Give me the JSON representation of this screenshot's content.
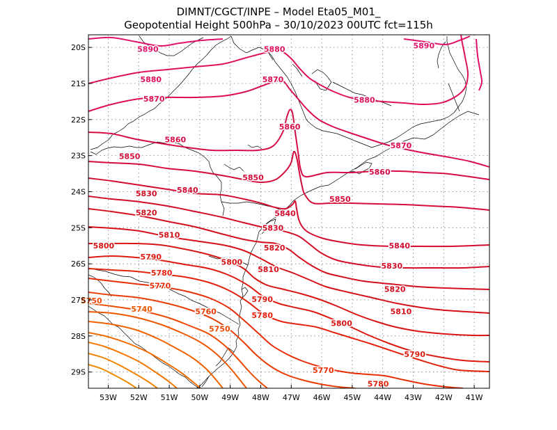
{
  "header": {
    "line1": "DIMNT/CGCT/INPE –  Model Eta05_M01_",
    "line2": "Geopotential Height 500hPa –  30/10/2023 00UTC fct=115h"
  },
  "map": {
    "lon_range": [
      -53.65,
      -40.5
    ],
    "lat_range": [
      -29.45,
      -19.65
    ],
    "lon_ticks": [
      {
        "value": -53,
        "label": "53W"
      },
      {
        "value": -52,
        "label": "52W"
      },
      {
        "value": -51,
        "label": "51W"
      },
      {
        "value": -50,
        "label": "50W"
      },
      {
        "value": -49,
        "label": "49W"
      },
      {
        "value": -48,
        "label": "48W"
      },
      {
        "value": -47,
        "label": "47W"
      },
      {
        "value": -46,
        "label": "46W"
      },
      {
        "value": -45,
        "label": "45W"
      },
      {
        "value": -44,
        "label": "44W"
      },
      {
        "value": -43,
        "label": "43W"
      },
      {
        "value": -42,
        "label": "42W"
      },
      {
        "value": -41,
        "label": "41W"
      }
    ],
    "lat_ticks": [
      {
        "value": -20,
        "label": "20S"
      },
      {
        "value": -21,
        "label": "21S"
      },
      {
        "value": -22,
        "label": "22S"
      },
      {
        "value": -23,
        "label": "23S"
      },
      {
        "value": -24,
        "label": "24S"
      },
      {
        "value": -25,
        "label": "25S"
      },
      {
        "value": -26,
        "label": "26S"
      },
      {
        "value": -27,
        "label": "27S"
      },
      {
        "value": -28,
        "label": "28S"
      },
      {
        "value": -29,
        "label": "29S"
      }
    ],
    "grid": "dotted",
    "contour_levels": [
      5690,
      5700,
      5710,
      5720,
      5730,
      5740,
      5750,
      5760,
      5770,
      5780,
      5790,
      5800,
      5810,
      5820,
      5830,
      5840,
      5850,
      5860,
      5870,
      5880,
      5890
    ],
    "contour_colors": {
      "5690": "#f08a00",
      "5700": "#f28200",
      "5710": "#f27800",
      "5720": "#f26e00",
      "5730": "#f06200",
      "5740": "#ee5600",
      "5750": "#eb4a00",
      "5760": "#e83c04",
      "5770": "#e52e08",
      "5780": "#e2220c",
      "5790": "#dd1a10",
      "5800": "#d81414",
      "5810": "#d51018",
      "5820": "#d30e1e",
      "5830": "#d20c26",
      "5840": "#d20c30",
      "5850": "#d30c3a",
      "5860": "#d50c46",
      "5870": "#da0e52",
      "5880": "#de105e",
      "5890": "#e0126a"
    },
    "contour_labels": [
      {
        "text": "5890",
        "lon": -51.7,
        "lat": -20.05
      },
      {
        "text": "5890",
        "lon": -42.65,
        "lat": -19.95
      },
      {
        "text": "5880",
        "lon": -47.55,
        "lat": -20.05
      },
      {
        "text": "5880",
        "lon": -51.6,
        "lat": -20.88
      },
      {
        "text": "5880",
        "lon": -44.6,
        "lat": -21.45
      },
      {
        "text": "5870",
        "lon": -47.6,
        "lat": -20.88
      },
      {
        "text": "5870",
        "lon": -51.5,
        "lat": -21.42
      },
      {
        "text": "5870",
        "lon": -43.4,
        "lat": -22.72
      },
      {
        "text": "5860",
        "lon": -47.05,
        "lat": -22.2
      },
      {
        "text": "5860",
        "lon": -50.8,
        "lat": -22.55
      },
      {
        "text": "5860",
        "lon": -44.1,
        "lat": -23.45
      },
      {
        "text": "5850",
        "lon": -52.3,
        "lat": -23.02
      },
      {
        "text": "5850",
        "lon": -48.25,
        "lat": -23.6
      },
      {
        "text": "5850",
        "lon": -45.4,
        "lat": -24.2
      },
      {
        "text": "5840",
        "lon": -50.4,
        "lat": -23.95
      },
      {
        "text": "5840",
        "lon": -47.2,
        "lat": -24.6
      },
      {
        "text": "5840",
        "lon": -43.45,
        "lat": -25.5
      },
      {
        "text": "5830",
        "lon": -51.75,
        "lat": -24.05
      },
      {
        "text": "5830",
        "lon": -47.6,
        "lat": -25.0
      },
      {
        "text": "5830",
        "lon": -43.7,
        "lat": -26.05
      },
      {
        "text": "5820",
        "lon": -51.75,
        "lat": -24.58
      },
      {
        "text": "5820",
        "lon": -47.55,
        "lat": -25.55
      },
      {
        "text": "5820",
        "lon": -43.6,
        "lat": -26.7
      },
      {
        "text": "5810",
        "lon": -51.0,
        "lat": -25.2
      },
      {
        "text": "5810",
        "lon": -47.75,
        "lat": -26.15
      },
      {
        "text": "5810",
        "lon": -43.4,
        "lat": -27.32
      },
      {
        "text": "5800",
        "lon": -53.15,
        "lat": -25.5
      },
      {
        "text": "5800",
        "lon": -48.95,
        "lat": -25.95
      },
      {
        "text": "5800",
        "lon": -45.35,
        "lat": -27.65
      },
      {
        "text": "5790",
        "lon": -51.6,
        "lat": -25.8
      },
      {
        "text": "5790",
        "lon": -47.95,
        "lat": -26.98
      },
      {
        "text": "5790",
        "lon": -42.95,
        "lat": -28.5
      },
      {
        "text": "5780",
        "lon": -51.25,
        "lat": -26.25
      },
      {
        "text": "5780",
        "lon": -47.95,
        "lat": -27.42
      },
      {
        "text": "5780",
        "lon": -44.15,
        "lat": -29.32
      },
      {
        "text": "5770",
        "lon": -51.3,
        "lat": -26.6
      },
      {
        "text": "5770",
        "lon": -45.95,
        "lat": -28.95
      },
      {
        "text": "5760",
        "lon": -49.8,
        "lat": -27.32
      },
      {
        "text": "5750",
        "lon": -53.55,
        "lat": -27.02
      },
      {
        "text": "5750",
        "lon": -49.35,
        "lat": -27.8
      },
      {
        "text": "5740",
        "lon": -51.9,
        "lat": -27.25
      }
    ]
  }
}
